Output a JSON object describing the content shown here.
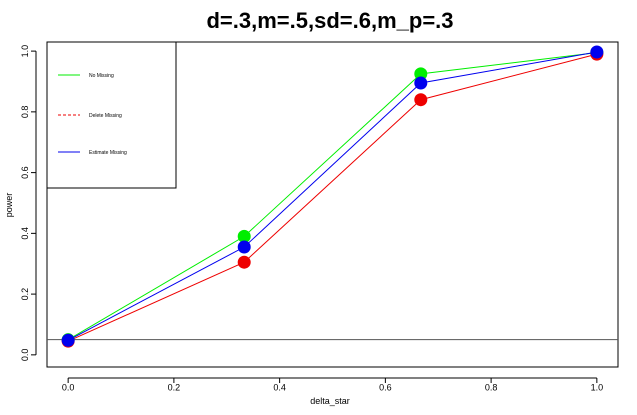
{
  "chart_data": {
    "type": "line",
    "title": "d=.3,m=.5,sd=.6,m_p=.3",
    "xlabel": "delta_star",
    "ylabel": "power",
    "x": [
      0.0,
      0.333,
      0.667,
      1.0
    ],
    "xlim": [
      -0.04,
      1.04
    ],
    "ylim": [
      -0.04,
      1.03
    ],
    "xticks": [
      "0.0",
      "0.2",
      "0.4",
      "0.6",
      "0.8",
      "1.0"
    ],
    "yticks": [
      "0.0",
      "0.2",
      "0.4",
      "0.6",
      "0.8",
      "1.0"
    ],
    "reference_line_y": 0.05,
    "grid": false,
    "legend_position": "top-left",
    "series": [
      {
        "name": "No Missing",
        "color": "#00ee00",
        "line_style": "solid",
        "values": [
          0.05,
          0.39,
          0.925,
          0.995
        ]
      },
      {
        "name": "Delete Missing",
        "color": "#ee0000",
        "line_style": "dashed",
        "values": [
          0.045,
          0.305,
          0.84,
          0.99
        ]
      },
      {
        "name": "Estimate Missing",
        "color": "#0000ee",
        "line_style": "solid",
        "values": [
          0.048,
          0.355,
          0.895,
          0.997
        ]
      }
    ]
  }
}
